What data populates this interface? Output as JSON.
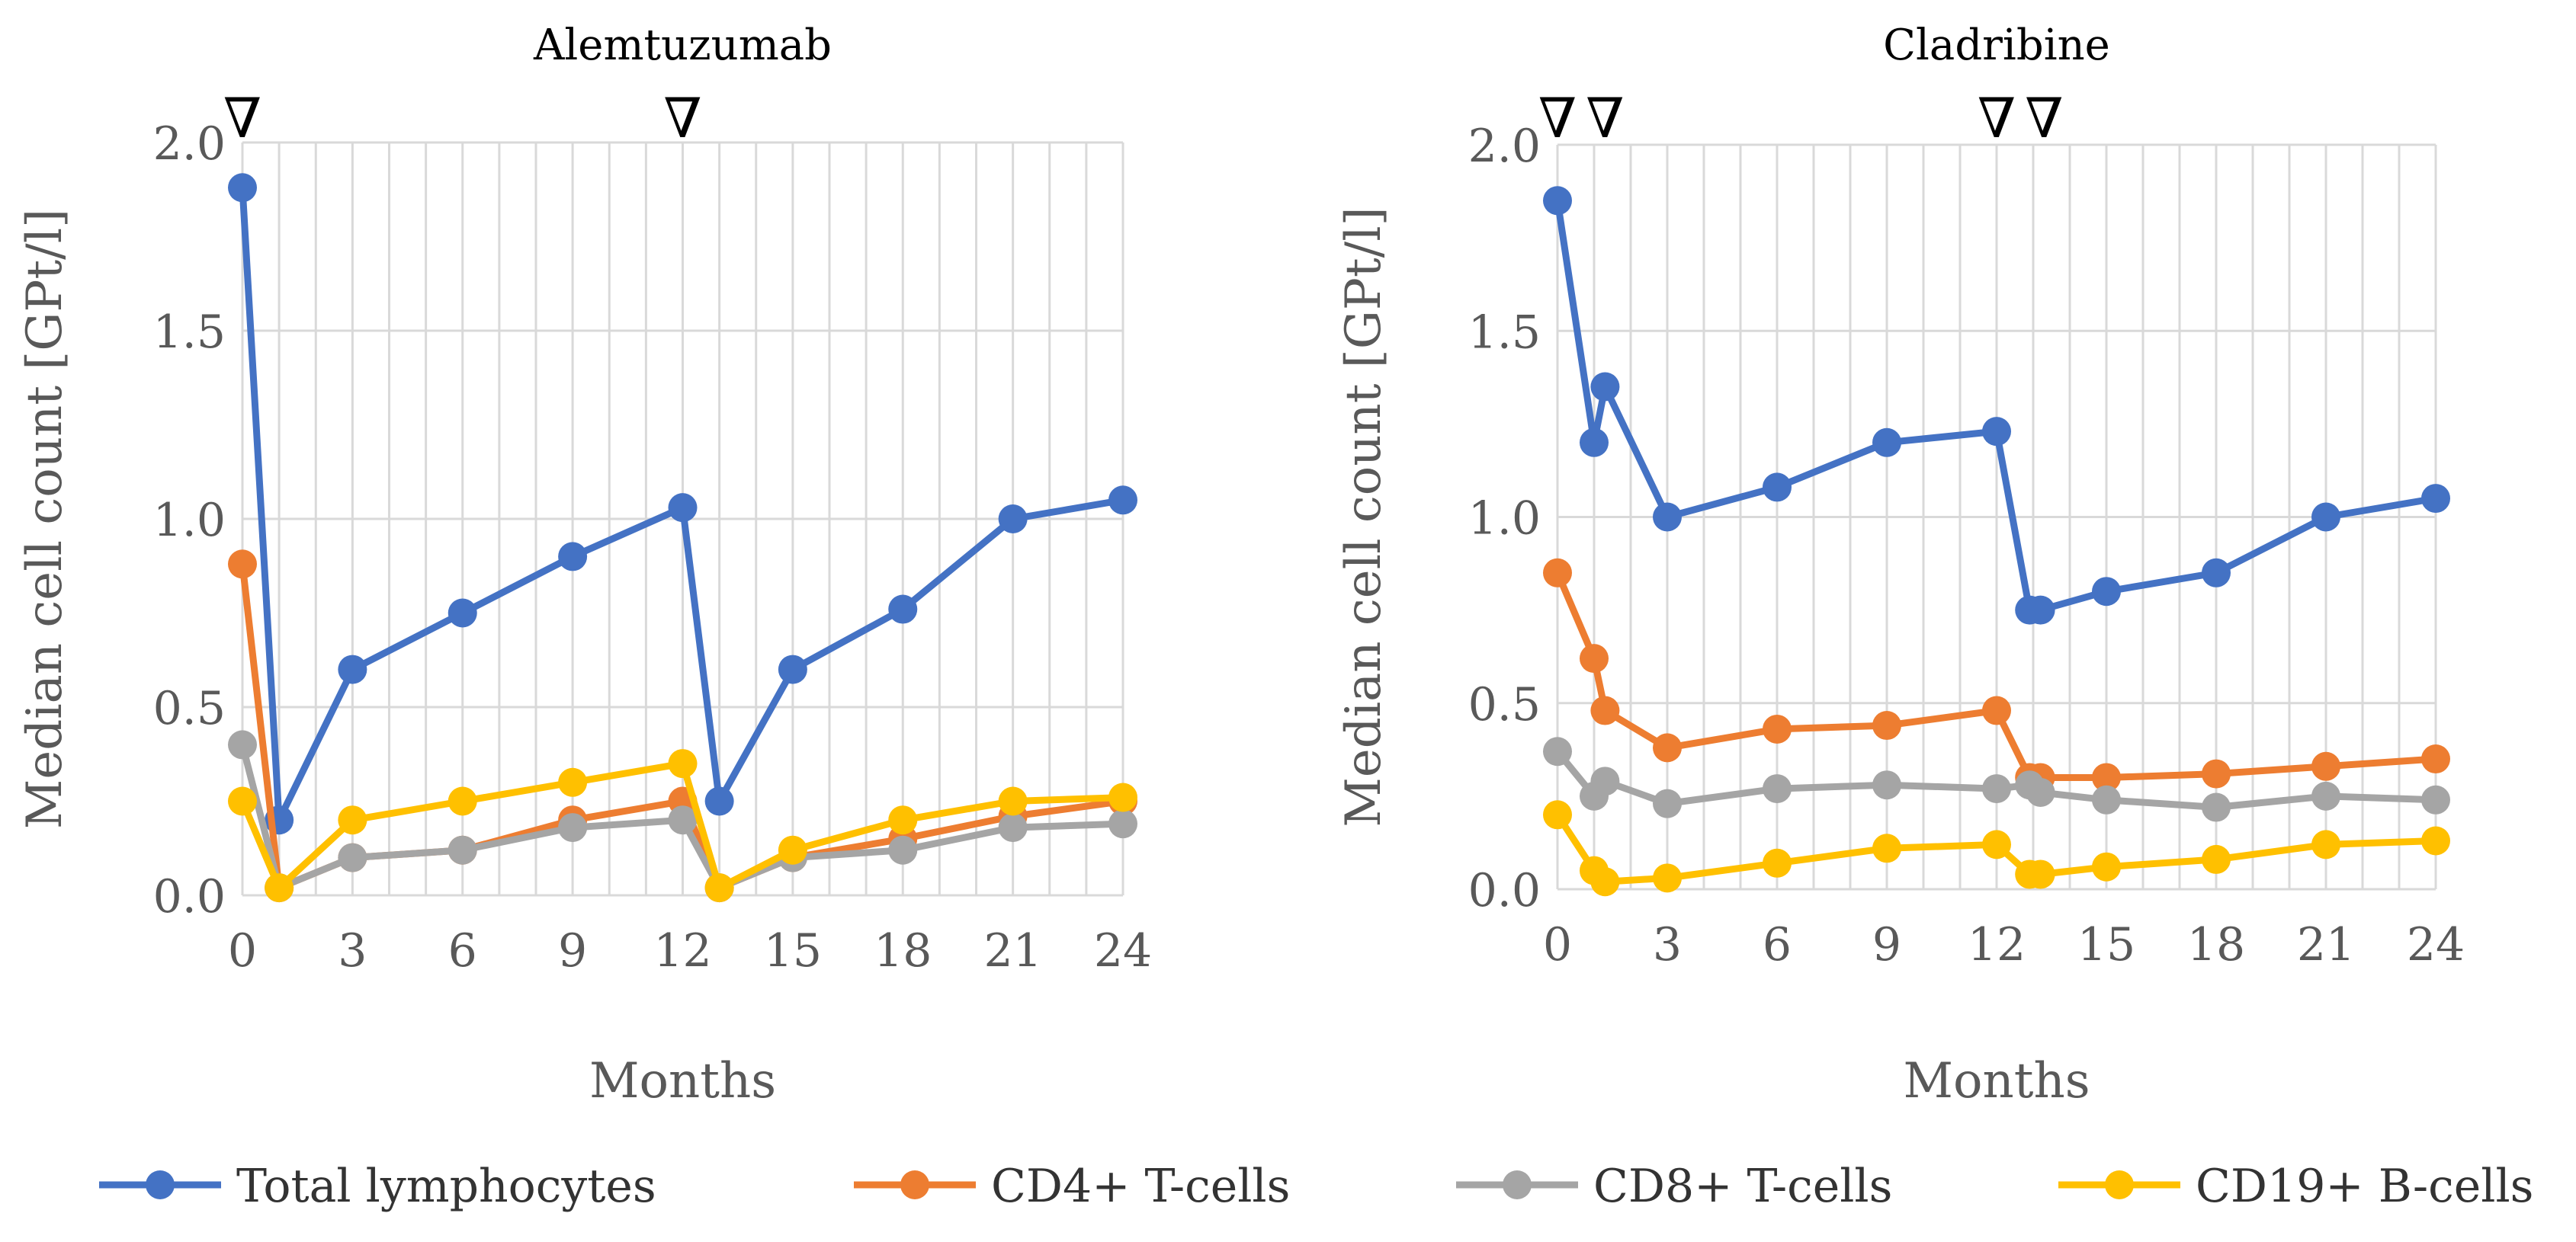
{
  "chart_data": [
    {
      "type": "line",
      "title": "Alemtuzumab",
      "xlabel": "Months",
      "ylabel": "Median cell count [GPt/l]",
      "xlim": [
        0,
        24
      ],
      "ylim": [
        0,
        2
      ],
      "x_ticks": [
        "0",
        "3",
        "6",
        "9",
        "12",
        "15",
        "18",
        "21",
        "24"
      ],
      "y_ticks": [
        "0.0",
        "0.5",
        "1.0",
        "1.5",
        "2.0"
      ],
      "grid": true,
      "dosing_markers": [
        0,
        12
      ],
      "series": [
        {
          "name": "Total lymphocytes",
          "color": "#4472C4",
          "x": [
            0,
            1,
            3,
            6,
            9,
            12,
            13,
            15,
            18,
            21,
            24
          ],
          "y": [
            1.88,
            0.2,
            0.6,
            0.75,
            0.9,
            1.03,
            0.25,
            0.6,
            0.76,
            1.0,
            1.05
          ]
        },
        {
          "name": "CD4+ T-cells",
          "color": "#ED7D31",
          "x": [
            0,
            1,
            3,
            6,
            9,
            12,
            13,
            15,
            18,
            21,
            24
          ],
          "y": [
            0.88,
            0.02,
            0.1,
            0.12,
            0.2,
            0.25,
            0.02,
            0.1,
            0.15,
            0.21,
            0.25
          ]
        },
        {
          "name": "CD8+ T-cells",
          "color": "#A5A5A5",
          "x": [
            0,
            1,
            3,
            6,
            9,
            12,
            13,
            15,
            18,
            21,
            24
          ],
          "y": [
            0.4,
            0.02,
            0.1,
            0.12,
            0.18,
            0.2,
            0.02,
            0.1,
            0.12,
            0.18,
            0.19
          ]
        },
        {
          "name": "CD19+ B-cells",
          "color": "#FFC000",
          "x": [
            0,
            1,
            3,
            6,
            9,
            12,
            13,
            15,
            18,
            21,
            24
          ],
          "y": [
            0.25,
            0.02,
            0.2,
            0.25,
            0.3,
            0.35,
            0.02,
            0.12,
            0.2,
            0.25,
            0.26
          ]
        }
      ]
    },
    {
      "type": "line",
      "title": "Cladribine",
      "xlabel": "Months",
      "ylabel": "Median cell count [GPt/l]",
      "xlim": [
        0,
        24
      ],
      "ylim": [
        0,
        2
      ],
      "x_ticks": [
        "0",
        "3",
        "6",
        "9",
        "12",
        "15",
        "18",
        "21",
        "24"
      ],
      "y_ticks": [
        "0.0",
        "0.5",
        "1.0",
        "1.5",
        "2.0"
      ],
      "grid": true,
      "dosing_markers": [
        0,
        1.3,
        12,
        13.3
      ],
      "series": [
        {
          "name": "Total lymphocytes",
          "color": "#4472C4",
          "x": [
            0,
            1,
            1.3,
            3,
            6,
            9,
            12,
            12.9,
            13.2,
            15,
            18,
            21,
            24
          ],
          "y": [
            1.85,
            1.2,
            1.35,
            1.0,
            1.08,
            1.2,
            1.23,
            0.75,
            0.75,
            0.8,
            0.85,
            1.0,
            1.05
          ]
        },
        {
          "name": "CD4+ T-cells",
          "color": "#ED7D31",
          "x": [
            0,
            1,
            1.3,
            3,
            6,
            9,
            12,
            12.9,
            13.2,
            15,
            18,
            21,
            24
          ],
          "y": [
            0.85,
            0.62,
            0.48,
            0.38,
            0.43,
            0.44,
            0.48,
            0.3,
            0.3,
            0.3,
            0.31,
            0.33,
            0.35
          ]
        },
        {
          "name": "CD8+ T-cells",
          "color": "#A5A5A5",
          "x": [
            0,
            1,
            1.3,
            3,
            6,
            9,
            12,
            12.9,
            13.2,
            15,
            18,
            21,
            24
          ],
          "y": [
            0.37,
            0.25,
            0.29,
            0.23,
            0.27,
            0.28,
            0.27,
            0.28,
            0.26,
            0.24,
            0.22,
            0.25,
            0.24
          ]
        },
        {
          "name": "CD19+ B-cells",
          "color": "#FFC000",
          "x": [
            0,
            1,
            1.3,
            3,
            6,
            9,
            12,
            12.9,
            13.2,
            15,
            18,
            21,
            24
          ],
          "y": [
            0.2,
            0.05,
            0.02,
            0.03,
            0.07,
            0.11,
            0.12,
            0.04,
            0.04,
            0.06,
            0.08,
            0.12,
            0.13
          ]
        }
      ]
    }
  ],
  "legend": [
    {
      "label": "Total lymphocytes",
      "color": "#4472C4"
    },
    {
      "label": "CD4+ T-cells",
      "color": "#ED7D31"
    },
    {
      "label": "CD8+ T-cells",
      "color": "#A5A5A5"
    },
    {
      "label": "CD19+ B-cells",
      "color": "#FFC000"
    }
  ],
  "marker_glyph": "∇"
}
